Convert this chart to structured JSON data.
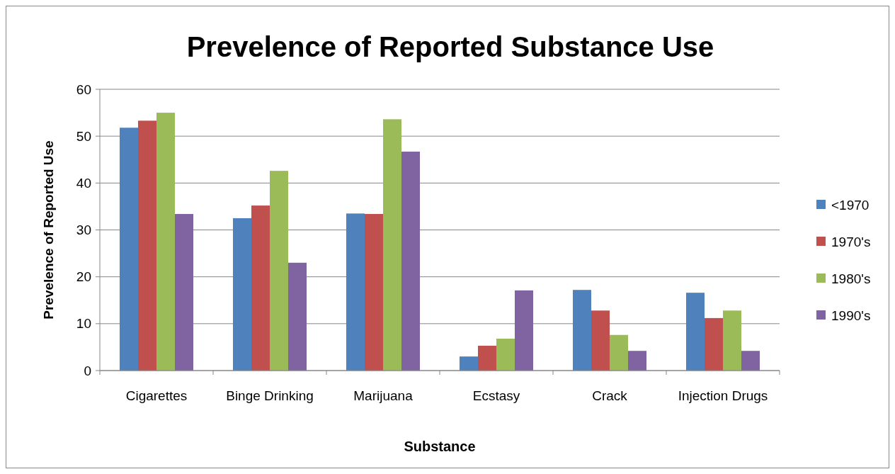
{
  "chart_data": {
    "type": "bar",
    "title": "Prevelence of Reported Substance Use",
    "xlabel": "Substance",
    "ylabel": "Prevelence of Reported Use",
    "categories": [
      "Cigarettes",
      "Binge Drinking",
      "Marijuana",
      "Ecstasy",
      "Crack",
      "Injection Drugs"
    ],
    "series": [
      {
        "name": "<1970",
        "color": "#4f81bd",
        "values": [
          51.8,
          32.5,
          33.5,
          3.0,
          17.2,
          16.6
        ]
      },
      {
        "name": "1970's",
        "color": "#c0504d",
        "values": [
          53.3,
          35.2,
          33.4,
          5.3,
          12.8,
          11.2
        ]
      },
      {
        "name": "1980's",
        "color": "#9bbb59",
        "values": [
          55.0,
          42.6,
          53.6,
          6.8,
          7.6,
          12.8
        ]
      },
      {
        "name": "1990's",
        "color": "#8064a2",
        "values": [
          33.4,
          23.0,
          46.7,
          17.1,
          4.2,
          4.2
        ]
      }
    ],
    "ylim": [
      0,
      60
    ],
    "yticks": [
      0,
      10,
      20,
      30,
      40,
      50,
      60
    ],
    "grid": "y",
    "legend": "right"
  }
}
